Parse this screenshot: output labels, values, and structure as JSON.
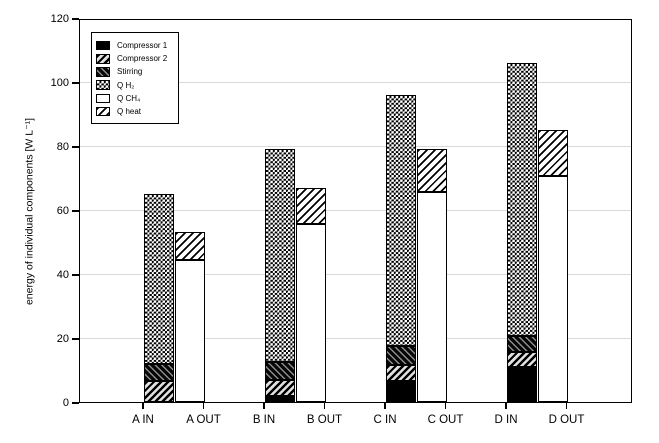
{
  "chart_data": {
    "type": "bar",
    "stacked": true,
    "title": "",
    "xlabel": "",
    "ylabel": "energy of individual components [W L⁻¹]",
    "ylim": [
      0,
      120
    ],
    "yticks": [
      0,
      20,
      40,
      60,
      80,
      100,
      120
    ],
    "grid": "horizontal light gray lines at major y ticks",
    "legend_position": "upper-left inside plot",
    "categories": [
      "A IN",
      "A OUT",
      "B IN",
      "B OUT",
      "C IN",
      "C OUT",
      "D IN",
      "D OUT"
    ],
    "series": [
      {
        "name": "Compressor 1",
        "pattern": "solid-black",
        "values": [
          0,
          0,
          2,
          0,
          6.5,
          0,
          11,
          0
        ]
      },
      {
        "name": "Compressor 2",
        "pattern": "diagonal-hatch-dark",
        "values": [
          6.5,
          0,
          5,
          0,
          5,
          0,
          4.5,
          0
        ]
      },
      {
        "name": "Stirring",
        "pattern": "back-diagonal-hatch-dark",
        "values": [
          5.5,
          0,
          5.5,
          0,
          6,
          0,
          5,
          0
        ]
      },
      {
        "name": "Q H₂",
        "pattern": "checkerboard",
        "values": [
          53,
          0,
          66.5,
          0,
          78.5,
          0,
          85.5,
          0
        ]
      },
      {
        "name": "Q CH₄",
        "pattern": "white",
        "values": [
          0,
          44.5,
          0,
          55.5,
          0,
          65.5,
          0,
          70.5
        ]
      },
      {
        "name": "Q heat",
        "pattern": "diagonal-hatch-light",
        "values": [
          0,
          8.5,
          0,
          11.5,
          0,
          13.5,
          0,
          14.5
        ]
      }
    ],
    "totals": {
      "A IN": 65,
      "A OUT": 53,
      "B IN": 79,
      "B OUT": 67,
      "C IN": 96,
      "C OUT": 79,
      "D IN": 106,
      "D OUT": 85
    }
  },
  "colors": {
    "foreground": "#000000",
    "background": "#ffffff",
    "gridline": "#d9d9d9"
  }
}
